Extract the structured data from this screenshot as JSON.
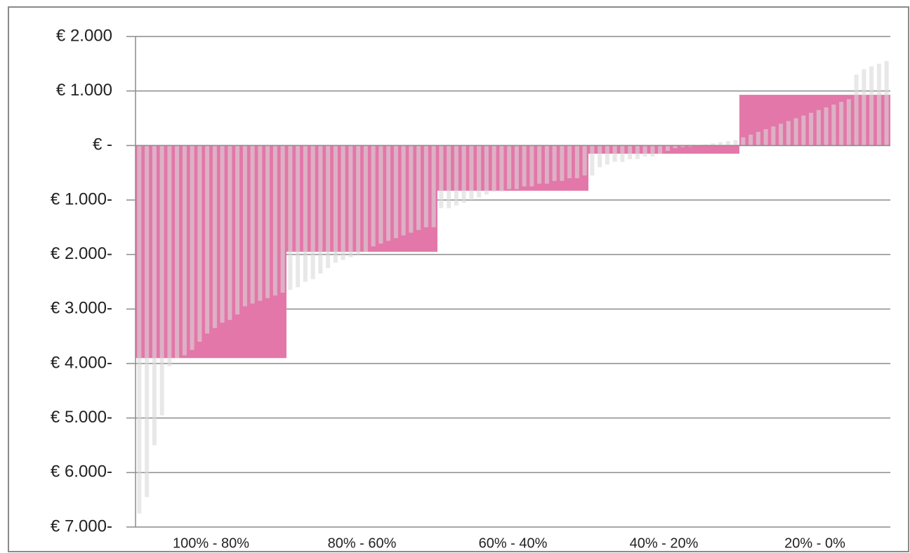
{
  "chart_data": {
    "type": "bar",
    "categories": [
      "100% - 80%",
      "80% - 60%",
      "60% - 40%",
      "40% - 20%",
      "20% - 0%"
    ],
    "values": [
      -3900,
      -1950,
      -830,
      -150,
      930
    ],
    "color": "#e377a9",
    "households": {
      "color": "#d9d9d9",
      "values": [
        -6750,
        -6450,
        -5500,
        -4950,
        -4050,
        -3900,
        -3850,
        -3750,
        -3600,
        -3450,
        -3350,
        -3250,
        -3200,
        -3100,
        -2950,
        -2900,
        -2850,
        -2800,
        -2750,
        -2700,
        -2650,
        -2600,
        -2500,
        -2450,
        -2350,
        -2250,
        -2150,
        -2100,
        -2050,
        -2000,
        -1950,
        -1850,
        -1800,
        -1750,
        -1700,
        -1650,
        -1600,
        -1550,
        -1500,
        -1500,
        -1150,
        -1150,
        -1100,
        -1050,
        -1000,
        -950,
        -900,
        -850,
        -850,
        -800,
        -800,
        -750,
        -750,
        -700,
        -700,
        -650,
        -650,
        -600,
        -600,
        -550,
        -550,
        -400,
        -350,
        -300,
        -300,
        -250,
        -250,
        -200,
        -200,
        -150,
        -100,
        -50,
        -30,
        -20,
        10,
        20,
        40,
        60,
        80,
        100,
        150,
        200,
        250,
        300,
        350,
        400,
        450,
        500,
        550,
        600,
        650,
        700,
        750,
        800,
        850,
        1300,
        1400,
        1450,
        1500,
        1550
      ]
    },
    "ylim": [
      -7000,
      2000
    ],
    "yticks": [
      {
        "value": 2000,
        "label": "€ 2.000"
      },
      {
        "value": 1000,
        "label": "€ 1.000"
      },
      {
        "value": 0,
        "label": "€ -"
      },
      {
        "value": -1000,
        "label": "€ 1.000-"
      },
      {
        "value": -2000,
        "label": "€ 2.000-"
      },
      {
        "value": -3000,
        "label": "€ 3.000-"
      },
      {
        "value": -4000,
        "label": "€ 4.000-"
      },
      {
        "value": -5000,
        "label": "€ 5.000-"
      },
      {
        "value": -6000,
        "label": "€ 6.000-"
      },
      {
        "value": -7000,
        "label": "€ 7.000-"
      }
    ],
    "grid": true
  }
}
